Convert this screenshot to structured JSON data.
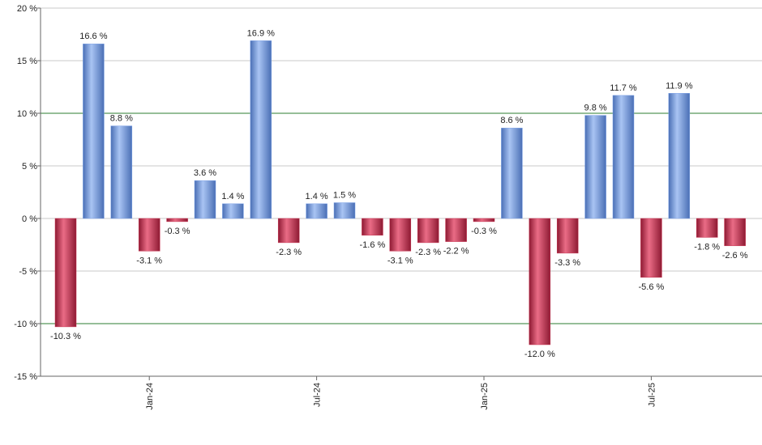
{
  "chart_data": {
    "type": "bar",
    "categories": [
      null,
      null,
      null,
      "Jan-24",
      null,
      null,
      null,
      null,
      null,
      "Jul-24",
      null,
      null,
      null,
      null,
      null,
      "Jan-25",
      null,
      null,
      null,
      null,
      null,
      "Jul-25",
      null,
      null,
      null
    ],
    "values": [
      -10.3,
      16.6,
      8.8,
      -3.1,
      -0.3,
      3.6,
      1.4,
      16.9,
      -2.3,
      1.4,
      1.5,
      -1.6,
      -3.1,
      -2.3,
      -2.2,
      -0.3,
      8.6,
      -12.0,
      -3.3,
      9.8,
      11.7,
      -5.6,
      11.9,
      -1.8,
      -2.6
    ],
    "value_labels": [
      "-10.3 %",
      "16.6 %",
      "8.8 %",
      "-3.1 %",
      "-0.3 %",
      "3.6 %",
      "1.4 %",
      "16.9 %",
      "-2.3 %",
      "1.4 %",
      "1.5 %",
      "-1.6 %",
      "-3.1 %",
      "-2.3 %",
      "-2.2 %",
      "-0.3 %",
      "8.6 %",
      "-12.0 %",
      "-3.3 %",
      "9.8 %",
      "11.7 %",
      "-5.6 %",
      "11.9 %",
      "-1.8 %",
      "-2.6 %"
    ],
    "positive_color": "#7ea3e8",
    "negative_color": "#c93350",
    "ylim": [
      -15,
      20
    ],
    "yticks": [
      {
        "value": -15,
        "label": "-15 %"
      },
      {
        "value": -10,
        "label": "-10 %"
      },
      {
        "value": -5,
        "label": "-5 %"
      },
      {
        "value": 0,
        "label": "0 %"
      },
      {
        "value": 5,
        "label": "5 %"
      },
      {
        "value": 10,
        "label": "10 %"
      },
      {
        "value": 15,
        "label": "15 %"
      },
      {
        "value": 20,
        "label": "20 %"
      }
    ],
    "grid": true,
    "grid_color": "#c8c8c8",
    "highlight_yticks": [
      -10,
      10
    ],
    "highlight_grid_color": "#2e7d32"
  }
}
